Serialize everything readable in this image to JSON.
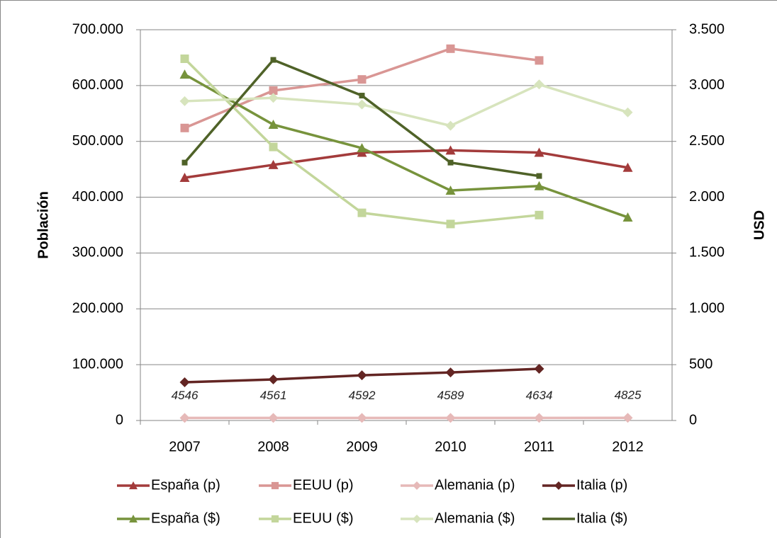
{
  "chart_data": {
    "type": "line",
    "y_label": "Población",
    "y2_label": "USD",
    "categories": [
      "2007",
      "2008",
      "2009",
      "2010",
      "2011",
      "2012"
    ],
    "ylim": [
      0,
      700000
    ],
    "yticks": [
      0,
      {
        "value": 100000,
        "label": "100.000"
      },
      {
        "value": 200000,
        "label": "200.000"
      },
      {
        "value": 300000,
        "label": "300.000"
      },
      {
        "value": 400000,
        "label": "400.000"
      },
      {
        "value": 500000,
        "label": "500.000"
      },
      {
        "value": 600000,
        "label": "600.000"
      },
      {
        "value": 700000,
        "label": "700.000"
      }
    ],
    "y2lim": [
      0,
      3500
    ],
    "y2ticks": [
      0,
      500,
      {
        "value": 1000,
        "label": "1.000"
      },
      {
        "value": 1500,
        "label": "1.500"
      },
      {
        "value": 2000,
        "label": "2.000"
      },
      {
        "value": 2500,
        "label": "2.500"
      },
      {
        "value": 3000,
        "label": "3.000"
      },
      {
        "value": 3500,
        "label": "3.500"
      }
    ],
    "grid": true,
    "legend": "bottom",
    "series": [
      {
        "name": "España (p)",
        "color": "#a33b3b",
        "marker": "triangle",
        "values": [
          435000,
          458000,
          480000,
          484000,
          480000,
          453000
        ]
      },
      {
        "name": "EEUU (p)",
        "color": "#d99694",
        "marker": "square",
        "values": [
          524000,
          591000,
          611000,
          666000,
          645000,
          null
        ]
      },
      {
        "name": "Alemania (p)",
        "color": "#e6b9b8",
        "marker": "diamond",
        "values": [
          4546,
          4561,
          4592,
          4589,
          4634,
          4825
        ],
        "show_labels": true
      },
      {
        "name": "Italia (p)",
        "color": "#632523",
        "marker": "diamond",
        "values": [
          68500,
          73500,
          81000,
          86000,
          92500,
          null
        ]
      },
      {
        "name": "España ($)",
        "color": "#77933c",
        "marker": "triangle",
        "axis": "y2",
        "values": [
          3100,
          2650,
          2440,
          2060,
          2100,
          1820
        ]
      },
      {
        "name": "EEUU ($)",
        "color": "#c3d69b",
        "marker": "square",
        "axis": "y2",
        "values": [
          3240,
          2450,
          1860,
          1760,
          1840,
          null
        ]
      },
      {
        "name": "Alemania ($)",
        "color": "#d7e4bd",
        "marker": "diamond",
        "axis": "y2",
        "values": [
          2860,
          2890,
          2830,
          2640,
          3010,
          2760
        ]
      },
      {
        "name": "Italia ($)",
        "color": "#4f6228",
        "marker": "dash",
        "axis": "y2",
        "values": [
          2310,
          3230,
          2910,
          2310,
          2190,
          null
        ]
      }
    ]
  }
}
